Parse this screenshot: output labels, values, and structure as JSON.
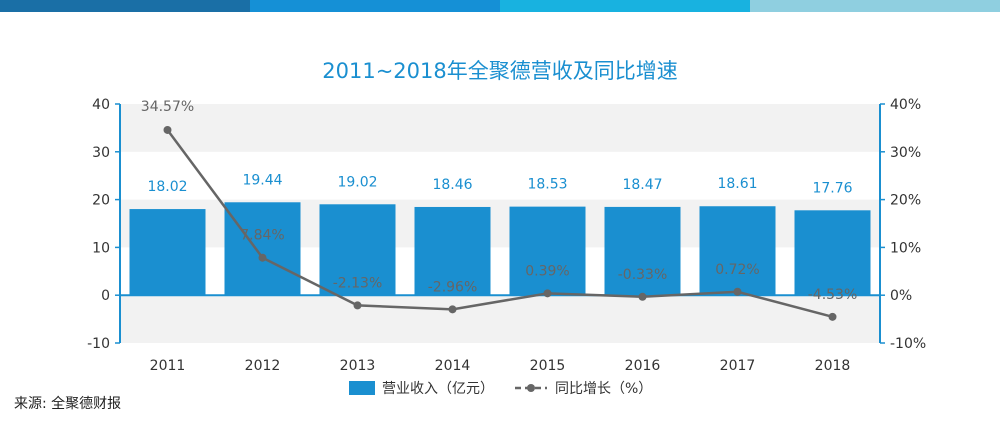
{
  "header_colors": [
    "#1a6fa6",
    "#1590d6",
    "#18b2e0",
    "#8fcfe0"
  ],
  "source": "来源: 全聚德财报",
  "chart_data": {
    "type": "bar",
    "title": "2011~2018年全聚德营收及同比增速",
    "categories": [
      "2011",
      "2012",
      "2013",
      "2014",
      "2015",
      "2016",
      "2017",
      "2018"
    ],
    "series": [
      {
        "name": "营业收入（亿元）",
        "type": "bar",
        "axis": "left",
        "color": "#1a8fd0",
        "values": [
          18.02,
          19.44,
          19.02,
          18.46,
          18.53,
          18.47,
          18.61,
          17.76
        ],
        "labels": [
          "18.02",
          "19.44",
          "19.02",
          "18.46",
          "18.53",
          "18.47",
          "18.61",
          "17.76"
        ]
      },
      {
        "name": "同比增长（%）",
        "type": "line",
        "axis": "right",
        "color": "#666666",
        "values": [
          34.57,
          7.84,
          -2.13,
          -2.96,
          0.39,
          -0.33,
          0.72,
          -4.53
        ],
        "labels": [
          "34.57%",
          "7.84%",
          "-2.13%",
          "-2.96%",
          "0.39%",
          "-0.33%",
          "0.72%",
          "-4.53%"
        ]
      }
    ],
    "ylim": [
      -10,
      40
    ],
    "yticks": [
      "40",
      "30",
      "20",
      "10",
      "0",
      "-10"
    ],
    "y2lim": [
      -10,
      40
    ],
    "y2ticks": [
      "40%",
      "30%",
      "20%",
      "10%",
      "0%",
      "-10%"
    ],
    "grid": false,
    "legend": "bottom"
  }
}
